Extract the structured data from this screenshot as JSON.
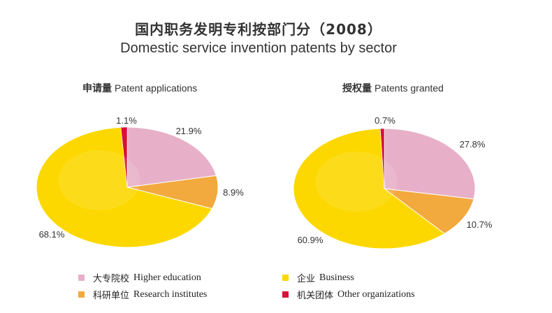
{
  "title_cn": "国内职务发明专利按部门分（2008）",
  "title_en": "Domestic service invention patents by sector",
  "chart_data": [
    {
      "type": "pie",
      "title_cn": "申请量",
      "title_en": "Patent applications",
      "slices": [
        {
          "key": "higher_education",
          "value": 21.9,
          "label": "21.9%"
        },
        {
          "key": "research_institutes",
          "value": 8.9,
          "label": "8.9%"
        },
        {
          "key": "business",
          "value": 68.1,
          "label": "68.1%"
        },
        {
          "key": "other",
          "value": 1.1,
          "label": "1.1%"
        }
      ]
    },
    {
      "type": "pie",
      "title_cn": "授权量",
      "title_en": "Patents granted",
      "slices": [
        {
          "key": "higher_education",
          "value": 27.8,
          "label": "27.8%"
        },
        {
          "key": "research_institutes",
          "value": 10.7,
          "label": "10.7%"
        },
        {
          "key": "business",
          "value": 60.9,
          "label": "60.9%"
        },
        {
          "key": "other",
          "value": 0.7,
          "label": "0.7%"
        }
      ]
    }
  ],
  "legend": [
    {
      "key": "higher_education",
      "cn": "大专院校",
      "en": "Higher education",
      "color": "#e8b0c8"
    },
    {
      "key": "business",
      "cn": "企业",
      "en": "Business",
      "color": "#fcd800"
    },
    {
      "key": "research_institutes",
      "cn": "科研单位",
      "en": "Research institutes",
      "color": "#f2a93e"
    },
    {
      "key": "other",
      "cn": "机关团体",
      "en": "Other organizations",
      "color": "#d8103a"
    }
  ]
}
